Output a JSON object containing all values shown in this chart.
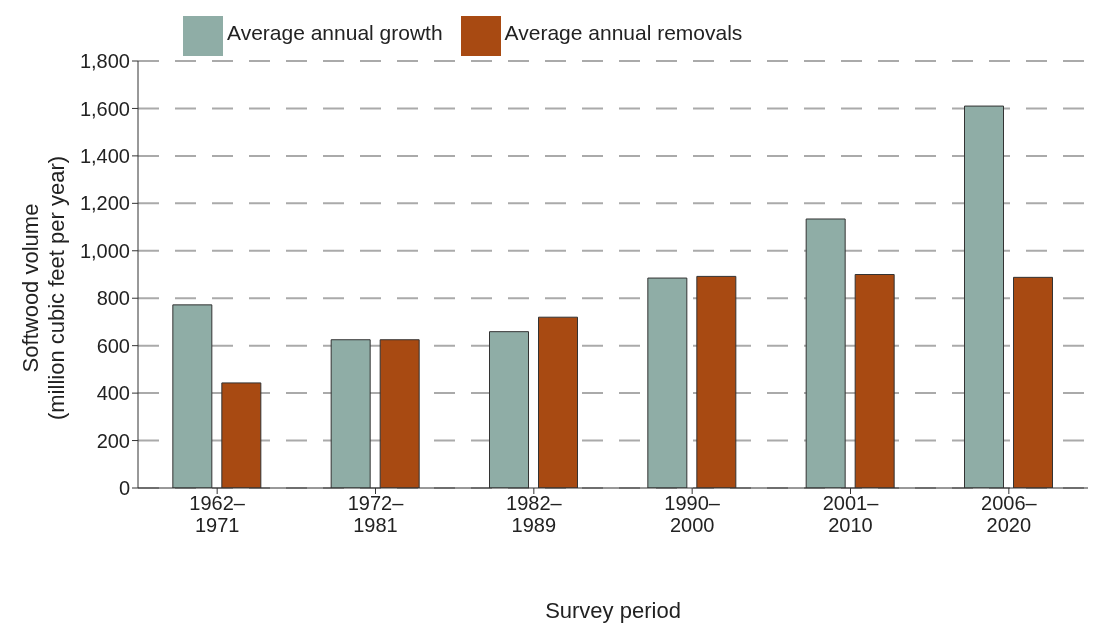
{
  "chart_data": {
    "type": "bar",
    "xlabel": "Survey period",
    "ylabel": "Softwood volume\n(million cubic feet per year)",
    "categories": [
      "1962–\n1971",
      "1972–\n1981",
      "1982–\n1989",
      "1990–\n2000",
      "2001–\n2010",
      "2006–\n2020"
    ],
    "series": [
      {
        "name": "Average annual growth",
        "color": "#8fada6",
        "values": [
          772,
          625,
          659,
          885,
          1134,
          1610
        ]
      },
      {
        "name": "Average annual removals",
        "color": "#a84a12",
        "values": [
          443,
          625,
          720,
          892,
          900,
          888
        ]
      }
    ],
    "ylim": [
      0,
      1800
    ],
    "yticks": [
      {
        "value": 0,
        "label": "0"
      },
      {
        "value": 200,
        "label": "200"
      },
      {
        "value": 400,
        "label": "400"
      },
      {
        "value": 600,
        "label": "600"
      },
      {
        "value": 800,
        "label": "800"
      },
      {
        "value": 1000,
        "label": "1,000"
      },
      {
        "value": 1200,
        "label": "1,200"
      },
      {
        "value": 1400,
        "label": "1,400"
      },
      {
        "value": 1600,
        "label": "1,600"
      },
      {
        "value": 1800,
        "label": "1,800"
      }
    ],
    "grid": "y",
    "legend": "top left"
  }
}
